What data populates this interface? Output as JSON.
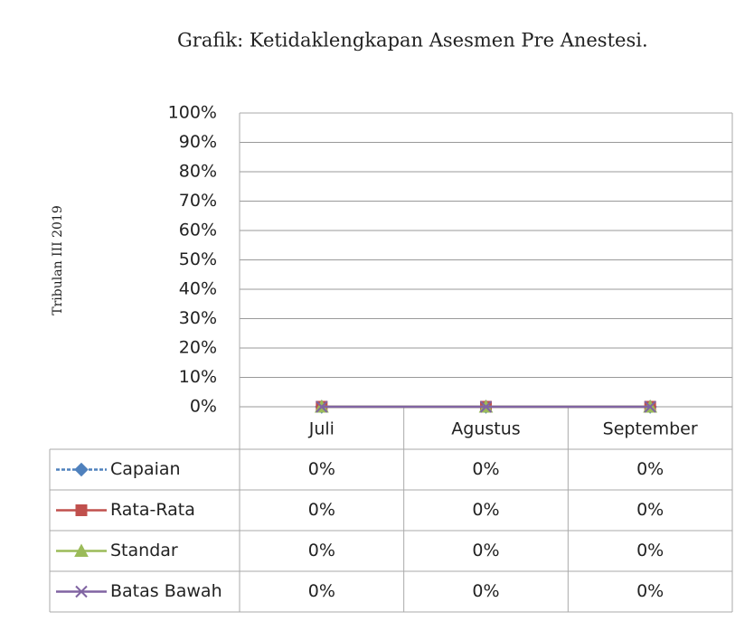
{
  "chart_data": {
    "type": "line",
    "title": "Grafik: Ketidaklengkapan Asesmen Pre Anestesi.",
    "y_label": "Tribulan III 2019",
    "categories": [
      "Juli",
      "Agustus",
      "September"
    ],
    "series": [
      {
        "name": "Capaian",
        "color": "#4f81bd",
        "marker": "diamond",
        "values": [
          0,
          0,
          0
        ],
        "value_labels": [
          "0%",
          "0%",
          "0%"
        ]
      },
      {
        "name": "Rata-Rata",
        "color": "#c0504d",
        "marker": "square",
        "values": [
          0,
          0,
          0
        ],
        "value_labels": [
          "0%",
          "0%",
          "0%"
        ]
      },
      {
        "name": "Standar",
        "color": "#9bbb59",
        "marker": "triangle",
        "values": [
          0,
          0,
          0
        ],
        "value_labels": [
          "0%",
          "0%",
          "0%"
        ]
      },
      {
        "name": "Batas Bawah",
        "color": "#8064a2",
        "marker": "x",
        "values": [
          0,
          0,
          0
        ],
        "value_labels": [
          "0%",
          "0%",
          "0%"
        ]
      }
    ],
    "ylim": [
      0,
      100
    ],
    "yticks": [
      {
        "value": 0,
        "label": "0%"
      },
      {
        "value": 10,
        "label": "10%"
      },
      {
        "value": 20,
        "label": "20%"
      },
      {
        "value": 30,
        "label": "30%"
      },
      {
        "value": 40,
        "label": "40%"
      },
      {
        "value": 50,
        "label": "50%"
      },
      {
        "value": 60,
        "label": "60%"
      },
      {
        "value": 70,
        "label": "70%"
      },
      {
        "value": 80,
        "label": "80%"
      },
      {
        "value": 90,
        "label": "90%"
      },
      {
        "value": 100,
        "label": "100%"
      }
    ],
    "grid": true,
    "legend": "table"
  }
}
